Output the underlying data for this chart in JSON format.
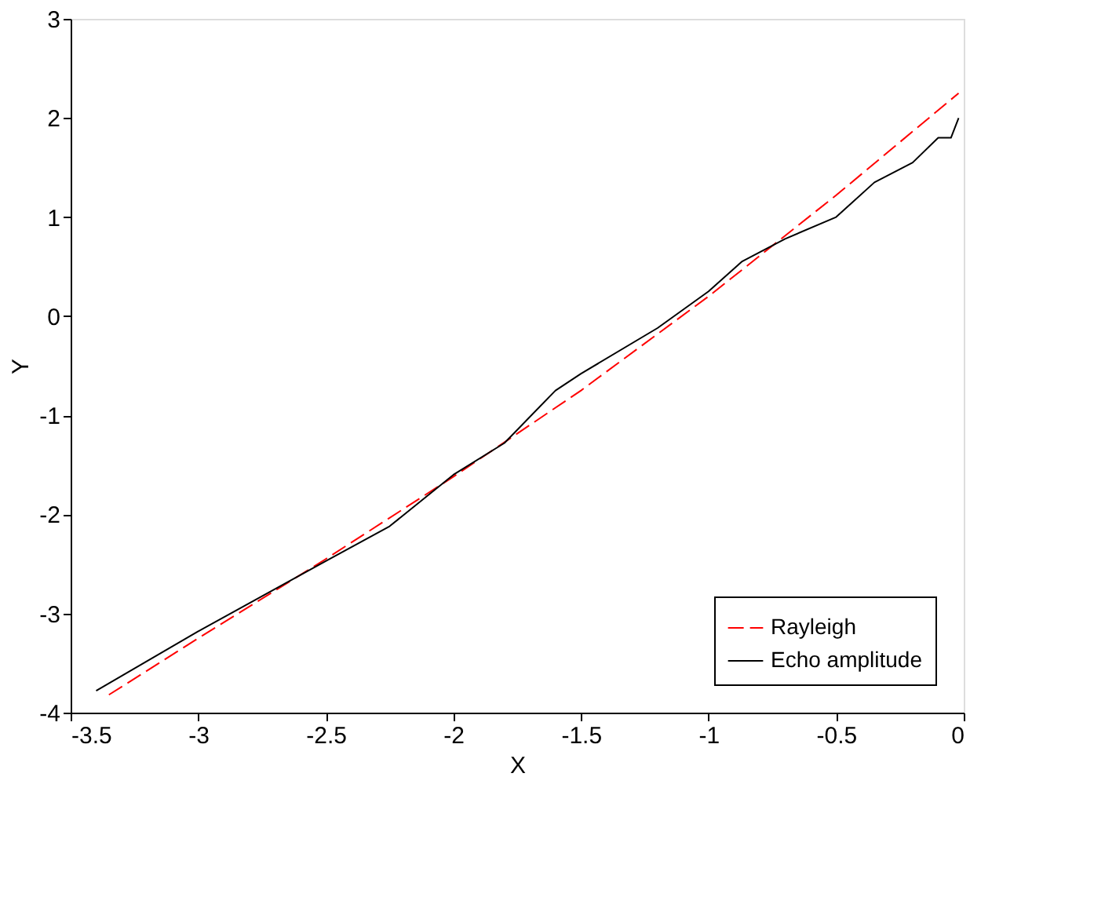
{
  "chart_data": {
    "type": "line",
    "xlabel": "X",
    "ylabel": "Y",
    "xlim": [
      -3.5,
      0
    ],
    "xticks": [
      -3.5,
      -3,
      -2.5,
      -2,
      -1.5,
      -1,
      -0.5,
      0
    ],
    "ylim": [
      -4,
      3
    ],
    "yticks": [
      -4,
      -3,
      -2,
      -1,
      0,
      1,
      2,
      3
    ],
    "grid": false,
    "legend": "bottom right",
    "series": [
      {
        "name": "Rayleigh",
        "color": "#ff0000",
        "line_style": "dashed",
        "x": [
          -3.35,
          -3,
          -2.5,
          -2,
          -1.5,
          -1,
          -0.5,
          -0.02
        ],
        "values": [
          -3.82,
          -3.25,
          -2.45,
          -1.62,
          -0.75,
          0.2,
          1.22,
          2.25
        ]
      },
      {
        "name": "Echo amplitude",
        "color": "#000000",
        "line_style": "solid",
        "x": [
          -3.4,
          -3,
          -2.5,
          -2.25,
          -2,
          -1.8,
          -1.6,
          -1.5,
          -1.2,
          -1,
          -0.87,
          -0.7,
          -0.5,
          -0.35,
          -0.2,
          -0.1,
          -0.05,
          -0.02
        ],
        "values": [
          -3.78,
          -3.18,
          -2.47,
          -2.12,
          -1.6,
          -1.28,
          -0.75,
          -0.58,
          -0.12,
          0.25,
          0.55,
          0.78,
          1.0,
          1.35,
          1.55,
          1.8,
          1.8,
          2.0
        ]
      }
    ]
  }
}
